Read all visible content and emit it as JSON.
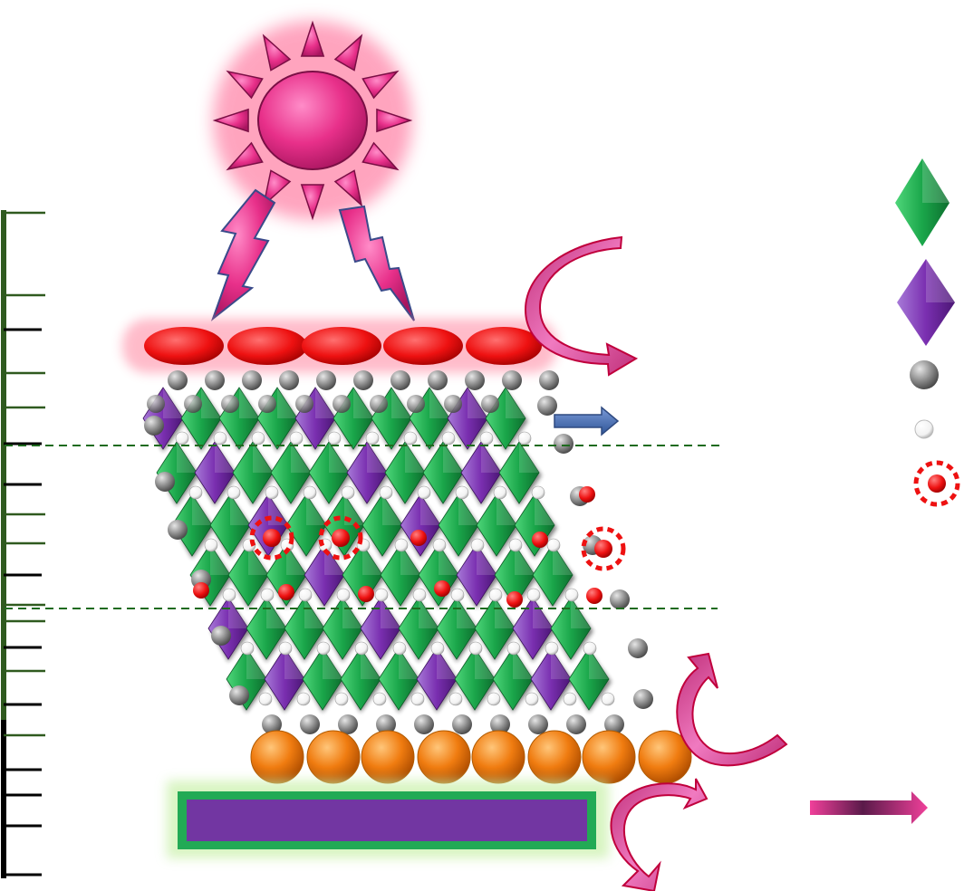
{
  "diagram": {
    "elements": [
      {
        "name": "sun",
        "icon": "sun-icon",
        "color": "#e8308a"
      },
      {
        "name": "light-ray",
        "icon": "lightning-icon",
        "count": 2,
        "color": "#e8308a"
      },
      {
        "name": "top-contact-layer",
        "shape": "ellipse",
        "count": 5,
        "color": "#ee1111"
      },
      {
        "name": "perovskite-lattice",
        "octahedra": [
          "#1aa64a",
          "#7a2fb0"
        ]
      },
      {
        "name": "interface-line",
        "style": "dashed",
        "count": 2,
        "color": "#1f6b1f"
      },
      {
        "name": "transport-layer",
        "shape": "sphere",
        "count": 8,
        "color": "#f07c10"
      },
      {
        "name": "substrate",
        "shape": "rect",
        "fill": "#7236a2",
        "border": "#22aa55"
      },
      {
        "name": "curved-arrow",
        "icon": "curved-arrow-icon",
        "count": 3,
        "color": "#e85aa8"
      },
      {
        "name": "straight-arrow",
        "icon": "arrow-right-icon",
        "count": 2,
        "colors": [
          "#4a6fb0",
          "#e8308a"
        ]
      }
    ],
    "legend": [
      {
        "icon": "green-octahedron-icon",
        "color": "#1aa64a"
      },
      {
        "icon": "purple-octahedron-icon",
        "color": "#7a2fb0"
      },
      {
        "icon": "gray-sphere-icon",
        "color": "#8c8c8c"
      },
      {
        "icon": "white-sphere-icon",
        "color": "#ffffff"
      },
      {
        "icon": "red-vacancy-icon",
        "color": "#ee1111"
      }
    ],
    "scale_bar": {
      "major_ticks": 9,
      "minor_ticks": 13
    }
  }
}
